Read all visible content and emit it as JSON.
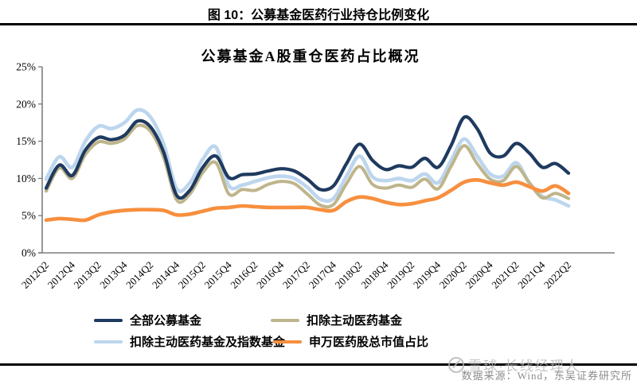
{
  "header": {
    "title": "图 10：公募基金医药行业持仓比例变化"
  },
  "chart_data": {
    "type": "line",
    "title": "公募基金A股重仓医药占比概况",
    "xlabel": "",
    "ylabel": "",
    "y_unit": "%",
    "ylim": [
      0,
      25
    ],
    "y_ticks": [
      0,
      5,
      10,
      15,
      20,
      25
    ],
    "grid": false,
    "legend_position": "bottom",
    "x": [
      "2012Q2",
      "2012Q3",
      "2012Q4",
      "2013Q1",
      "2013Q2",
      "2013Q3",
      "2013Q4",
      "2014Q1",
      "2014Q2",
      "2014Q3",
      "2014Q4",
      "2015Q1",
      "2015Q2",
      "2015Q3",
      "2015Q4",
      "2016Q1",
      "2016Q2",
      "2016Q3",
      "2016Q4",
      "2017Q1",
      "2017Q2",
      "2017Q3",
      "2017Q4",
      "2018Q1",
      "2018Q2",
      "2018Q3",
      "2018Q4",
      "2019Q1",
      "2019Q2",
      "2019Q3",
      "2019Q4",
      "2020Q1",
      "2020Q2",
      "2020Q3",
      "2020Q4",
      "2021Q1",
      "2021Q2",
      "2021Q3",
      "2021Q4",
      "2022Q1",
      "2022Q2"
    ],
    "x_tick_labels": [
      "2012Q2",
      "2012Q4",
      "2013Q2",
      "2013Q4",
      "2014Q2",
      "2014Q4",
      "2015Q2",
      "2015Q4",
      "2016Q2",
      "2016Q4",
      "2017Q2",
      "2017Q4",
      "2018Q2",
      "2018Q4",
      "2019Q2",
      "2019Q4",
      "2020Q2",
      "2020Q4",
      "2021Q2",
      "2021Q4",
      "2022Q2"
    ],
    "series": [
      {
        "name": "全部公募基金",
        "color": "#1f3a5f",
        "values": [
          8.7,
          11.8,
          10.4,
          13.8,
          15.5,
          15.2,
          15.8,
          17.7,
          16.9,
          13.5,
          7.7,
          8.4,
          11.5,
          13.0,
          10.1,
          10.5,
          10.6,
          11.0,
          11.3,
          11.0,
          9.9,
          8.5,
          9.0,
          12.0,
          14.6,
          12.4,
          11.2,
          11.7,
          11.5,
          12.7,
          11.5,
          14.4,
          18.2,
          16.7,
          13.4,
          13.0,
          14.7,
          13.4,
          11.5,
          12.0,
          10.7
        ]
      },
      {
        "name": "扣除主动医药基金",
        "color": "#bfb58c",
        "values": [
          8.3,
          11.4,
          10.0,
          13.2,
          14.9,
          14.7,
          15.3,
          17.1,
          16.3,
          12.8,
          7.1,
          7.9,
          10.8,
          12.1,
          7.9,
          8.5,
          8.4,
          9.2,
          9.6,
          9.3,
          7.9,
          6.4,
          6.5,
          9.3,
          11.6,
          9.2,
          8.7,
          9.1,
          8.8,
          9.9,
          8.6,
          11.6,
          14.4,
          12.0,
          9.9,
          9.7,
          11.6,
          9.4,
          7.4,
          8.0,
          7.3
        ]
      },
      {
        "name": "扣除主动医药基金及指数基金",
        "color": "#bdd6ee",
        "values": [
          9.9,
          12.9,
          11.5,
          15.0,
          17.0,
          16.7,
          17.5,
          19.2,
          18.2,
          14.6,
          8.6,
          9.4,
          12.6,
          14.2,
          9.0,
          9.1,
          9.6,
          10.1,
          10.3,
          10.0,
          8.8,
          7.2,
          7.3,
          10.3,
          13.0,
          10.2,
          9.7,
          10.0,
          9.7,
          10.6,
          9.4,
          12.4,
          15.3,
          13.0,
          10.6,
          10.3,
          12.1,
          9.4,
          7.6,
          7.1,
          6.3
        ]
      },
      {
        "name": "申万医药股总市值占比",
        "color": "#f78f3e",
        "values": [
          4.4,
          4.6,
          4.5,
          4.4,
          5.1,
          5.5,
          5.7,
          5.8,
          5.8,
          5.7,
          5.1,
          5.2,
          5.6,
          6.0,
          6.1,
          6.3,
          6.2,
          6.1,
          6.1,
          6.1,
          6.1,
          5.8,
          5.7,
          6.9,
          7.5,
          7.3,
          6.8,
          6.5,
          6.6,
          7.0,
          7.4,
          8.4,
          9.5,
          9.8,
          9.4,
          9.1,
          9.5,
          8.9,
          8.3,
          9.0,
          8.0
        ]
      }
    ]
  },
  "legend": [
    {
      "label": "全部公募基金",
      "color": "#1f3a5f"
    },
    {
      "label": "扣除主动医药基金",
      "color": "#bfb58c"
    },
    {
      "label": "扣除主动医药基金及指数基金",
      "color": "#bdd6ee"
    },
    {
      "label": "申万医药股总市值占比",
      "color": "#f78f3e"
    }
  ],
  "axis_color": "#7f7f7f",
  "footer": {
    "source": "数据来源：Wind，东吴证券研究所",
    "watermark": "雪球·长线经理人"
  }
}
